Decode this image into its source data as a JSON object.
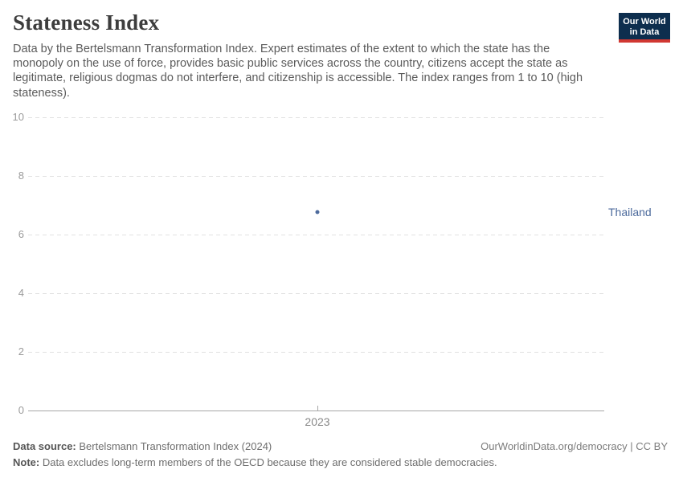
{
  "header": {
    "title": "Stateness Index",
    "subtitle_lines": [
      "Data by the Bertelsmann Transformation Index. Expert estimates of the extent to which the state has the",
      "monopoly on the use of force, provides basic public services across the country, citizens accept the state as",
      "legitimate, religious dogmas do not interfere, and citizenship is accessible. The index ranges from 1 to 10 (high",
      "stateness)."
    ],
    "logo": {
      "line1": "Our World",
      "line2": "in Data",
      "bg_color": "#0d2e4e",
      "bar_color": "#d13832"
    }
  },
  "chart_data": {
    "type": "scatter",
    "title": "Stateness Index",
    "xlabel": "",
    "ylabel": "",
    "ylim": [
      0,
      10
    ],
    "yticks": [
      0,
      2,
      4,
      6,
      8,
      10
    ],
    "xticks": [
      "2023"
    ],
    "grid": "horizontal-dashed",
    "legend_position": "right-entity-label",
    "series": [
      {
        "name": "Thailand",
        "x": [
          2023
        ],
        "values": [
          6.75
        ],
        "color": "#4c6a9c"
      }
    ]
  },
  "footer": {
    "source_label": "Data source:",
    "source_text": " Bertelsmann Transformation Index (2024)",
    "right_text": "OurWorldinData.org/democracy | CC BY",
    "note_label": "Note:",
    "note_text": " Data excludes long-term members of the OECD because they are considered stable democracies."
  }
}
